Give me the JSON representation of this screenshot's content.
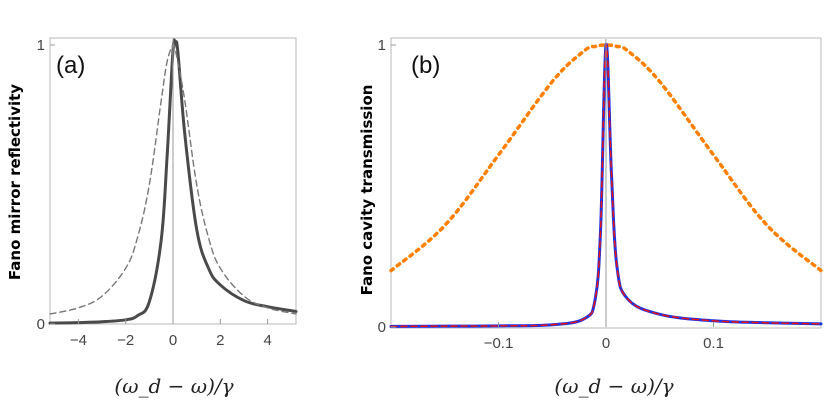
{
  "chart_data": [
    {
      "type": "line",
      "panel_label": "(a)",
      "ylabel": "Fano mirror reflectivity",
      "xlabel": "(ω_d − ω)/γ",
      "xlim": [
        -5.2,
        5.2
      ],
      "ylim": [
        0,
        1
      ],
      "xticks": [
        -4,
        -2,
        0,
        2,
        4
      ],
      "xtick_labels": [
        "−4",
        "−2",
        "0",
        "2",
        "4"
      ],
      "yticks": [
        0,
        1
      ],
      "ytick_labels": [
        "0",
        "1"
      ],
      "grid": false,
      "vertical_line_at_x": 0,
      "x": [
        -5.2,
        -4,
        -3,
        -2,
        -1.5,
        -1,
        -0.5,
        -0.25,
        0,
        0.1,
        0.2,
        0.5,
        1,
        1.5,
        2,
        3,
        4,
        5.2
      ],
      "series": [
        {
          "style": "solid",
          "color": "#4a4a4a",
          "values": [
            0.003,
            0.005,
            0.008,
            0.015,
            0.03,
            0.08,
            0.3,
            0.6,
            0.98,
            1.0,
            0.98,
            0.68,
            0.34,
            0.2,
            0.14,
            0.084,
            0.062,
            0.045
          ]
        },
        {
          "style": "dashed",
          "color": "#777777",
          "values": [
            0.036,
            0.058,
            0.1,
            0.2,
            0.31,
            0.5,
            0.8,
            0.94,
            1.0,
            0.98,
            0.94,
            0.8,
            0.5,
            0.31,
            0.2,
            0.1,
            0.058,
            0.036
          ]
        }
      ]
    },
    {
      "type": "line",
      "panel_label": "(b)",
      "ylabel": "Fano cavity transmission",
      "xlabel": "(ω_d − ω)/γ",
      "xlim": [
        -0.2,
        0.2
      ],
      "ylim": [
        0,
        1
      ],
      "xticks": [
        -0.1,
        0,
        0.1
      ],
      "xtick_labels": [
        "−0.1",
        "0",
        "0.1"
      ],
      "yticks": [
        0,
        1
      ],
      "ytick_labels": [
        "0",
        "1"
      ],
      "grid": false,
      "vertical_line_at_x": 0,
      "x": [
        -0.2,
        -0.15,
        -0.1,
        -0.05,
        -0.02,
        -0.01,
        -0.005,
        0,
        0.005,
        0.01,
        0.02,
        0.05,
        0.1,
        0.15,
        0.2
      ],
      "series": [
        {
          "style": "dotted",
          "color": "#ff8000",
          "values": [
            0.2,
            0.36,
            0.61,
            0.87,
            0.98,
            0.995,
            0.999,
            1.0,
            0.999,
            0.995,
            0.98,
            0.87,
            0.61,
            0.36,
            0.2
          ]
        },
        {
          "style": "solid",
          "color": "#2233dd",
          "values": [
            0.002,
            0.003,
            0.004,
            0.008,
            0.03,
            0.1,
            0.35,
            1.0,
            0.55,
            0.22,
            0.1,
            0.045,
            0.022,
            0.015,
            0.011
          ]
        },
        {
          "style": "dashed",
          "color": "#ee1111",
          "values": [
            0.002,
            0.003,
            0.004,
            0.008,
            0.03,
            0.1,
            0.35,
            1.0,
            0.55,
            0.22,
            0.1,
            0.045,
            0.022,
            0.015,
            0.011
          ]
        }
      ]
    }
  ]
}
